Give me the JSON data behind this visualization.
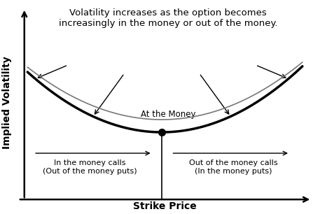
{
  "title_text": "Volatility increases as the option becomes\nincreasingly in the money or out of the money.",
  "xlabel": "Strike Price",
  "ylabel": "Implied Volatility",
  "at_the_money_label": "At the Money",
  "left_label_line1": "In the money calls",
  "left_label_line2": "(Out of the money puts)",
  "right_label_line1": "Out of the money calls",
  "right_label_line2": "(In the money puts)",
  "background_color": "#ffffff",
  "curve_color_dark": "#000000",
  "curve_color_light": "#777777",
  "title_fontsize": 9.5,
  "label_fontsize": 8.0,
  "axis_label_fontsize": 10,
  "atm_label_fontsize": 8.5
}
